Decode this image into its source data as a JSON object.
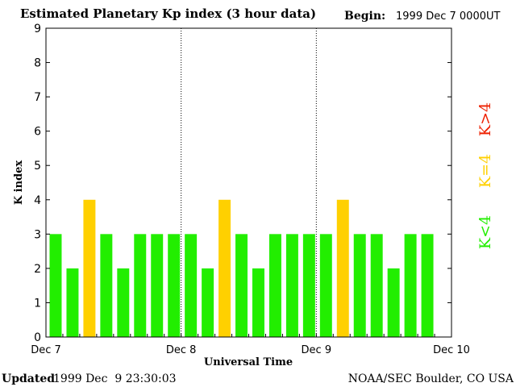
{
  "colors": {
    "green": "#22ee00",
    "yellow": "#ffd000",
    "red": "#ee2000",
    "axis": "#000000"
  },
  "header": {
    "begin_label": "Begin:",
    "begin_value": "1999 Dec 7 0000UT"
  },
  "footer": {
    "updated_label": "Updated",
    "updated_value": "1999 Dec  9 23:30:03",
    "source": "NOAA/SEC Boulder, CO USA"
  },
  "legend": {
    "low": "K<4",
    "mid": "K=4",
    "high": "K>4"
  },
  "chart_data": {
    "type": "bar",
    "title": "Estimated Planetary Kp index (3 hour data)",
    "xlabel": "Universal Time",
    "ylabel": "K index",
    "ylim": [
      0,
      9
    ],
    "yticks": [
      0,
      1,
      2,
      3,
      4,
      5,
      6,
      7,
      8,
      9
    ],
    "xtick_labels": [
      "Dec 7",
      "Dec 8",
      "Dec 9",
      "Dec 10"
    ],
    "interval_hours": 3,
    "values": [
      3,
      2,
      4,
      3,
      2,
      3,
      3,
      3,
      3,
      2,
      4,
      3,
      2,
      3,
      3,
      3,
      3,
      4,
      3,
      3,
      2,
      3,
      3
    ],
    "grid": "dotted vertical lines at day boundaries"
  }
}
